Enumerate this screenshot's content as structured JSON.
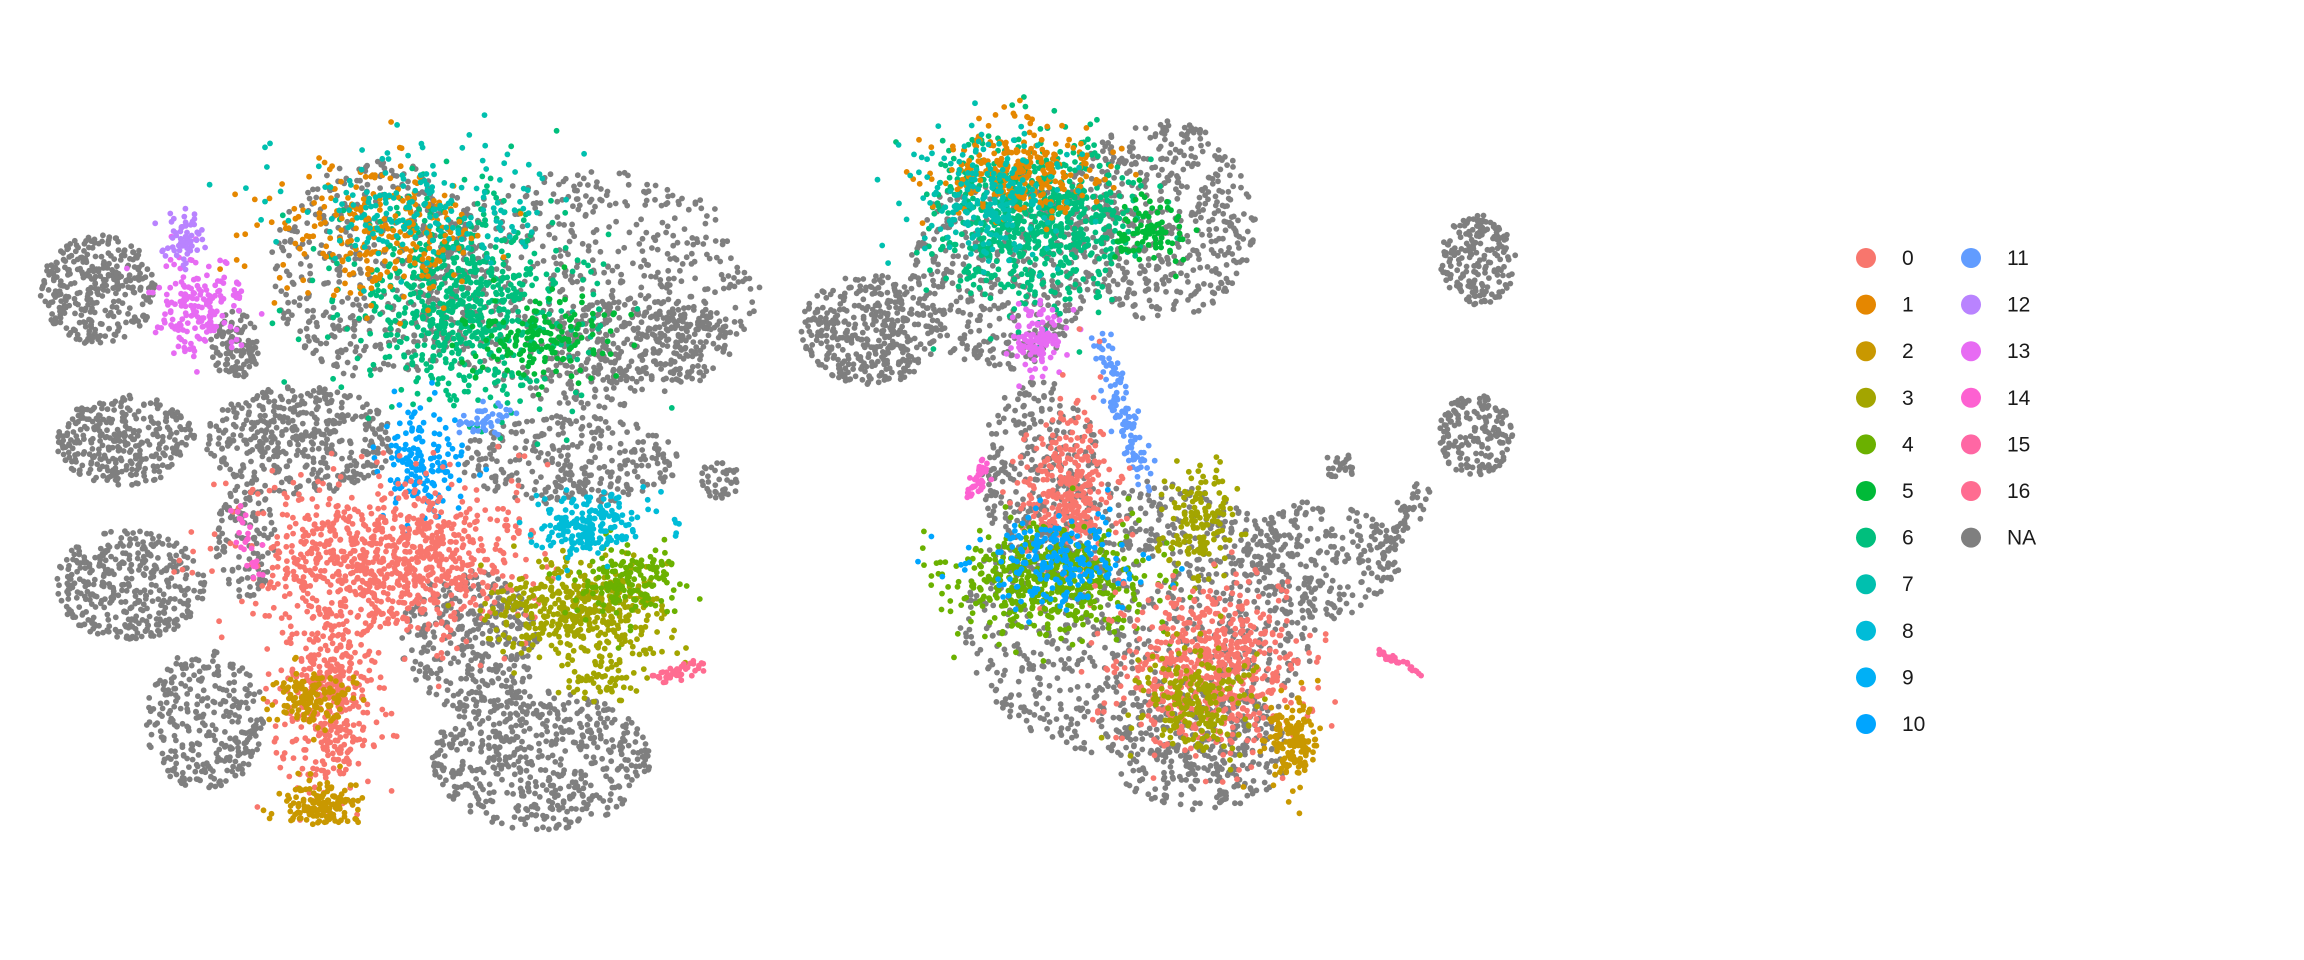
{
  "chart_data": [
    {
      "type": "scatter",
      "title": "",
      "xlabel": "",
      "ylabel": "",
      "axes": "none",
      "grid": false,
      "description_of_points": "tSNE-style embedding; thousands of points, grey for NA and colored by cluster id",
      "clusters_shown": [
        "0",
        "1",
        "2",
        "3",
        "4",
        "5",
        "6",
        "7",
        "8",
        "9",
        "10",
        "11",
        "12",
        "13",
        "14",
        "15",
        "16",
        "NA"
      ]
    },
    {
      "type": "scatter",
      "title": "",
      "xlabel": "",
      "ylabel": "",
      "axes": "none",
      "grid": false,
      "clusters_shown": [
        "0",
        "1",
        "2",
        "3",
        "4",
        "5",
        "6",
        "7",
        "8",
        "9",
        "10",
        "11",
        "12",
        "13",
        "14",
        "15",
        "16",
        "NA"
      ]
    }
  ],
  "legend": {
    "placement": "right",
    "columns": 2,
    "items": [
      {
        "label": "0",
        "color": "#F8766D"
      },
      {
        "label": "1",
        "color": "#E58700"
      },
      {
        "label": "2",
        "color": "#C99800"
      },
      {
        "label": "3",
        "color": "#A3A500"
      },
      {
        "label": "4",
        "color": "#6BB100"
      },
      {
        "label": "5",
        "color": "#00BA38"
      },
      {
        "label": "6",
        "color": "#00BF7D"
      },
      {
        "label": "7",
        "color": "#00C0AF"
      },
      {
        "label": "8",
        "color": "#00BCD8"
      },
      {
        "label": "9",
        "color": "#00B0F6"
      },
      {
        "label": "10",
        "color": "#00A5FF"
      },
      {
        "label": "11",
        "color": "#619CFF"
      },
      {
        "label": "12",
        "color": "#B983FF"
      },
      {
        "label": "13",
        "color": "#E76BF3"
      },
      {
        "label": "14",
        "color": "#FD61D1"
      },
      {
        "label": "15",
        "color": "#FF67A4"
      },
      {
        "label": "16",
        "color": "#FF6C91"
      },
      {
        "label": "NA",
        "color": "#7F7F7F"
      }
    ]
  }
}
